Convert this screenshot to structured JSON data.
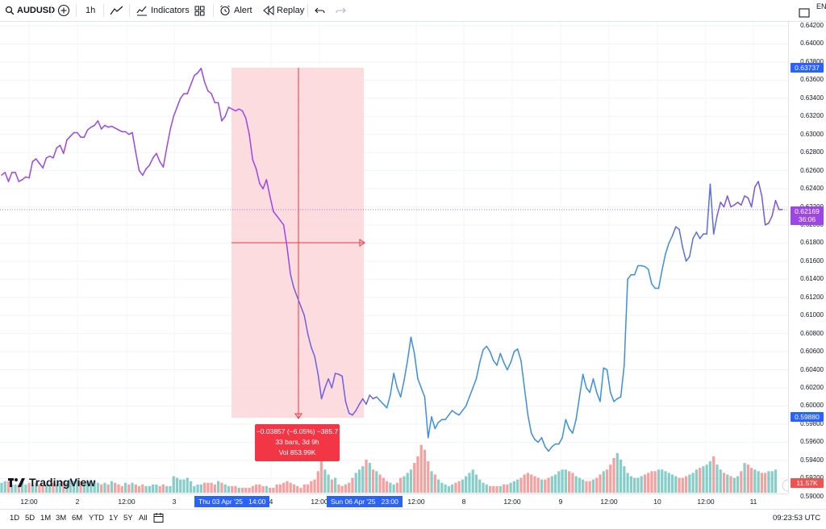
{
  "symbol": "AUDUSD",
  "toolbar": {
    "interval": "1h",
    "indicators": "Indicators",
    "alert": "Alert",
    "replay": "Replay",
    "lang": "EN"
  },
  "colors": {
    "up": "#26a69a",
    "down": "#ef5350",
    "accent": "#2962ff",
    "measure_fill": "#fbd6d8",
    "measure_label": "#f23645",
    "line_purple": "#9c46e6",
    "line_blue": "#3b8fe0"
  },
  "price_axis": [
    "0.64200",
    "0.64000",
    "0.63800",
    "0.63600",
    "0.63400",
    "0.63200",
    "0.63000",
    "0.62800",
    "0.62600",
    "0.62400",
    "0.62200",
    "0.62000",
    "0.61800",
    "0.61600",
    "0.61400",
    "0.61200",
    "0.61000",
    "0.60800",
    "0.60600",
    "0.60400",
    "0.60200",
    "0.60000",
    "0.59800",
    "0.59600",
    "0.59400",
    "0.59200",
    "0.59000"
  ],
  "price_tags": {
    "high": "0.63737",
    "current": "0.62169",
    "countdown": "36:06",
    "low": "0.59880",
    "volume": "11.57K"
  },
  "time_axis": [
    "12:00",
    "2",
    "12:00",
    "3",
    "4",
    "12:00",
    "12:00",
    "8",
    "12:00",
    "9",
    "12:00",
    "10",
    "12:00",
    "11"
  ],
  "time_tags": {
    "start": "Thu 03 Apr '25",
    "start_time": "14:00",
    "end": "Sun 06 Apr '25",
    "end_time": "23:00"
  },
  "measure": {
    "line1": "−0.03857 (−6.05%) −385.7",
    "line2": "33 bars, 3d 9h",
    "line3": "Vol 853.99K"
  },
  "logo_text": "TradingView",
  "ranges": [
    "1D",
    "5D",
    "1M",
    "3M",
    "6M",
    "YTD",
    "1Y",
    "5Y",
    "All"
  ],
  "clock": "09:23:53 UTC",
  "chart_data": {
    "type": "line",
    "symbol": "AUDUSD",
    "interval": "1h",
    "y_range": [
      0.59,
      0.642
    ],
    "price_series": [
      0.6255,
      0.6258,
      0.6248,
      0.6258,
      0.6258,
      0.6248,
      0.625,
      0.6253,
      0.6252,
      0.627,
      0.6273,
      0.6268,
      0.6263,
      0.6274,
      0.6276,
      0.6274,
      0.6285,
      0.6288,
      0.6279,
      0.6294,
      0.6298,
      0.6302,
      0.6302,
      0.6297,
      0.6297,
      0.6305,
      0.6308,
      0.631,
      0.6315,
      0.6306,
      0.631,
      0.6308,
      0.6309,
      0.6307,
      0.6305,
      0.6303,
      0.6303,
      0.63,
      0.6302,
      0.628,
      0.626,
      0.6255,
      0.6262,
      0.6266,
      0.6274,
      0.6279,
      0.627,
      0.6264,
      0.6285,
      0.6305,
      0.632,
      0.633,
      0.634,
      0.6345,
      0.6345,
      0.6355,
      0.6365,
      0.6368,
      0.6373,
      0.6358,
      0.6348,
      0.6345,
      0.6335,
      0.6335,
      0.6315,
      0.632,
      0.633,
      0.6328,
      0.6326,
      0.6328,
      0.6326,
      0.6318,
      0.63,
      0.6272,
      0.6262,
      0.6246,
      0.624,
      0.625,
      0.6232,
      0.6215,
      0.621,
      0.6205,
      0.62,
      0.6175,
      0.6145,
      0.613,
      0.612,
      0.611,
      0.61,
      0.608,
      0.6065,
      0.6055,
      0.6035,
      0.6008,
      0.602,
      0.603,
      0.602,
      0.6036,
      0.6035,
      0.6033,
      0.6005,
      0.5992,
      0.599,
      0.5995,
      0.6002,
      0.6008,
      0.6002,
      0.6012,
      0.6008,
      0.601,
      0.6006,
      0.6002,
      0.5998,
      0.6012,
      0.6036,
      0.602,
      0.601,
      0.6028,
      0.605,
      0.6076,
      0.6058,
      0.603,
      0.602,
      0.601,
      0.5965,
      0.5988,
      0.5975,
      0.5982,
      0.5985,
      0.5985,
      0.599,
      0.5995,
      0.5992,
      0.599,
      0.5995,
      0.6,
      0.601,
      0.602,
      0.603,
      0.6048,
      0.6062,
      0.6066,
      0.606,
      0.605,
      0.6045,
      0.6058,
      0.6048,
      0.604,
      0.6048,
      0.606,
      0.6063,
      0.605,
      0.602,
      0.599,
      0.597,
      0.5963,
      0.596,
      0.5965,
      0.5955,
      0.595,
      0.5955,
      0.5958,
      0.5958,
      0.5965,
      0.5985,
      0.5975,
      0.597,
      0.5985,
      0.601,
      0.6035,
      0.602,
      0.6015,
      0.603,
      0.6015,
      0.6005,
      0.6042,
      0.604,
      0.6015,
      0.6005,
      0.6008,
      0.601,
      0.6045,
      0.614,
      0.6145,
      0.6145,
      0.6155,
      0.6155,
      0.6154,
      0.6151,
      0.6135,
      0.613,
      0.613,
      0.615,
      0.6168,
      0.618,
      0.6188,
      0.6198,
      0.6195,
      0.6175,
      0.616,
      0.6165,
      0.6185,
      0.6192,
      0.6185,
      0.619,
      0.619,
      0.6245,
      0.619,
      0.621,
      0.6225,
      0.622,
      0.6232,
      0.622,
      0.6222,
      0.6225,
      0.6222,
      0.6232,
      0.623,
      0.622,
      0.6242,
      0.6248,
      0.6232,
      0.62,
      0.6202,
      0.621,
      0.6227,
      0.6217,
      0.6217
    ],
    "volume_series": [
      6,
      7,
      7,
      5,
      5,
      5,
      6,
      5,
      6,
      5,
      6,
      5,
      5,
      5,
      5,
      6,
      5,
      6,
      7,
      6,
      8,
      7,
      8,
      7,
      6,
      7,
      6,
      7,
      6,
      5,
      6,
      5,
      7,
      6,
      5,
      4,
      6,
      5,
      6,
      5,
      4,
      5,
      4,
      4,
      5,
      5,
      4,
      5,
      4,
      4,
      10,
      9,
      8,
      8,
      9,
      7,
      4,
      5,
      5,
      6,
      6,
      6,
      5,
      7,
      6,
      5,
      4,
      4,
      4,
      3,
      3,
      3,
      3,
      4,
      5,
      5,
      4,
      4,
      3,
      3,
      5,
      5,
      6,
      7,
      6,
      5,
      4,
      3,
      5,
      5,
      7,
      8,
      13,
      24,
      14,
      11,
      8,
      9,
      5,
      4,
      5,
      6,
      9,
      12,
      14,
      16,
      20,
      18,
      14,
      13,
      11,
      9,
      7,
      6,
      5,
      6,
      9,
      10,
      12,
      14,
      18,
      22,
      29,
      26,
      19,
      13,
      11,
      8,
      6,
      5,
      4,
      5,
      6,
      7,
      8,
      10,
      12,
      14,
      11,
      8,
      6,
      5,
      4,
      4,
      4,
      4,
      5,
      5,
      6,
      7,
      8,
      9,
      11,
      12,
      11,
      10,
      9,
      8,
      8,
      9,
      10,
      11,
      13,
      14,
      14,
      13,
      12,
      10,
      9,
      8,
      7,
      7,
      8,
      9,
      11,
      13,
      14,
      17,
      21,
      24,
      20,
      16,
      12,
      10,
      9,
      9,
      10,
      11,
      12,
      13,
      13,
      14,
      14,
      13,
      12,
      11,
      10,
      9,
      9,
      10,
      11,
      12,
      14,
      15,
      16,
      17,
      19,
      22,
      17,
      14,
      12,
      11,
      10,
      9,
      10,
      13,
      18,
      17,
      15,
      14,
      13,
      12,
      12,
      13,
      13,
      14
    ],
    "measure": {
      "change": "−0.03857",
      "change_pct": "−6.05%",
      "points": "−385.7",
      "bars": 33,
      "duration": "3d 9h",
      "volume": "853.99K"
    }
  }
}
